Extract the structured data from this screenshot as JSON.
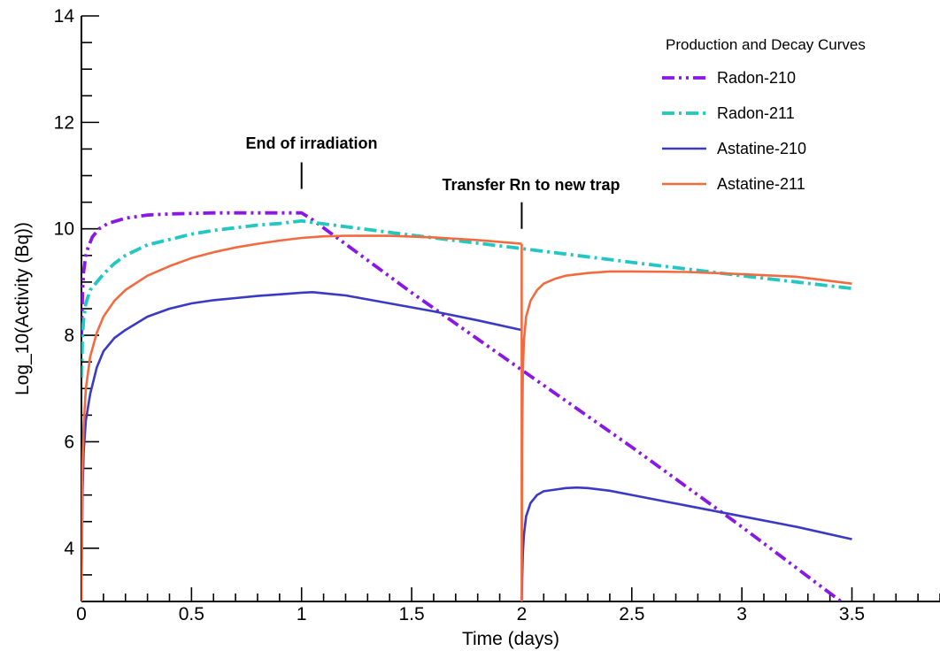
{
  "chart_data": {
    "type": "line",
    "title": "",
    "xlabel": "Time (days)",
    "ylabel": "Log_10(Activity (Bq))",
    "xlim": [
      0,
      3.9
    ],
    "ylim": [
      3,
      14
    ],
    "x_ticks": [
      0,
      0.5,
      1,
      1.5,
      2,
      2.5,
      3,
      3.5
    ],
    "x_tick_labels": [
      "0",
      "0.5",
      "1",
      "1.5",
      "2",
      "2.5",
      "3",
      "3.5"
    ],
    "y_ticks": [
      4,
      6,
      8,
      10,
      12,
      14
    ],
    "y_tick_labels": [
      "4",
      "6",
      "8",
      "10",
      "12",
      "14"
    ],
    "grid": false,
    "legend": {
      "title": "Production and Decay Curves",
      "position": "top-right"
    },
    "annotations": [
      {
        "text": "End of irradiation",
        "x": 1.0,
        "y_marker": [
          10.75,
          11.25
        ]
      },
      {
        "text": "Transfer Rn to new trap",
        "x": 2.0,
        "y_marker": [
          10.0,
          10.5
        ]
      }
    ],
    "series": [
      {
        "name": "Radon-210",
        "color": "#8a17e6",
        "style": "dashdotdot",
        "segments": [
          {
            "x": [
              0,
              0.005,
              0.01,
              0.02,
              0.03,
              0.05,
              0.08,
              0.12,
              0.2,
              0.3,
              0.4,
              0.5,
              0.6,
              0.7,
              0.8,
              0.9,
              1.0,
              1.05,
              1.5,
              2.0,
              2.5,
              3.0,
              3.45
            ],
            "y": [
              8.0,
              8.8,
              9.2,
              9.5,
              9.65,
              9.85,
              10.0,
              10.1,
              10.2,
              10.26,
              10.28,
              10.29,
              10.3,
              10.3,
              10.3,
              10.3,
              10.3,
              10.17,
              8.8,
              7.35,
              5.9,
              4.4,
              3.0
            ]
          }
        ]
      },
      {
        "name": "Radon-211",
        "color": "#22c7c2",
        "style": "dashdot",
        "segments": [
          {
            "x": [
              0,
              0.005,
              0.01,
              0.02,
              0.04,
              0.07,
              0.1,
              0.15,
              0.2,
              0.3,
              0.4,
              0.5,
              0.6,
              0.7,
              0.8,
              0.9,
              1.0,
              1.05,
              1.5,
              2.0,
              2.5,
              3.0,
              3.5
            ],
            "y": [
              7.2,
              8.0,
              8.3,
              8.6,
              8.85,
              9.0,
              9.15,
              9.35,
              9.5,
              9.7,
              9.8,
              9.9,
              9.97,
              10.02,
              10.07,
              10.1,
              10.15,
              10.12,
              9.88,
              9.63,
              9.37,
              9.12,
              8.88
            ]
          }
        ]
      },
      {
        "name": "Astatine-210",
        "color": "#3a3ac4",
        "style": "solid",
        "segments": [
          {
            "x": [
              0,
              0.005,
              0.01,
              0.02,
              0.04,
              0.07,
              0.1,
              0.15,
              0.2,
              0.3,
              0.4,
              0.5,
              0.6,
              0.7,
              0.8,
              0.9,
              1.0,
              1.05,
              1.2,
              1.4,
              1.6,
              1.8,
              2.0
            ],
            "y": [
              3.0,
              5.0,
              5.8,
              6.4,
              6.9,
              7.4,
              7.7,
              7.95,
              8.1,
              8.35,
              8.5,
              8.6,
              8.66,
              8.7,
              8.74,
              8.77,
              8.8,
              8.81,
              8.75,
              8.6,
              8.45,
              8.28,
              8.1
            ]
          },
          {
            "x": [
              2.0,
              2.002,
              2.005,
              2.01,
              2.02,
              2.04,
              2.07,
              2.1,
              2.15,
              2.2,
              2.25,
              2.3,
              2.4,
              2.5,
              2.75,
              3.0,
              3.25,
              3.5
            ],
            "y": [
              3.0,
              3.4,
              3.9,
              4.25,
              4.6,
              4.85,
              5.0,
              5.07,
              5.1,
              5.13,
              5.14,
              5.13,
              5.08,
              5.0,
              4.8,
              4.6,
              4.4,
              4.17
            ]
          }
        ]
      },
      {
        "name": "Astatine-211",
        "color": "#f26b40",
        "style": "solid",
        "segments": [
          {
            "x": [
              0,
              0.005,
              0.01,
              0.02,
              0.04,
              0.07,
              0.1,
              0.15,
              0.2,
              0.3,
              0.4,
              0.5,
              0.6,
              0.7,
              0.8,
              0.9,
              1.0,
              1.1,
              1.2,
              1.4,
              1.6,
              1.8,
              2.0
            ],
            "y": [
              3.0,
              5.5,
              6.3,
              7.0,
              7.6,
              8.05,
              8.35,
              8.65,
              8.85,
              9.12,
              9.3,
              9.45,
              9.56,
              9.65,
              9.72,
              9.78,
              9.83,
              9.86,
              9.87,
              9.87,
              9.84,
              9.79,
              9.72
            ]
          },
          {
            "x": [
              2.0,
              2.0,
              2.0,
              2.002,
              2.005,
              2.01,
              2.02,
              2.04,
              2.07,
              2.1,
              2.15,
              2.2,
              2.3,
              2.4,
              2.5,
              2.75,
              3.0,
              3.25,
              3.5
            ],
            "y": [
              9.72,
              9.7,
              3.0,
              6.0,
              7.3,
              7.9,
              8.35,
              8.65,
              8.85,
              8.97,
              9.06,
              9.12,
              9.17,
              9.2,
              9.2,
              9.19,
              9.15,
              9.1,
              8.97
            ]
          }
        ]
      }
    ]
  }
}
